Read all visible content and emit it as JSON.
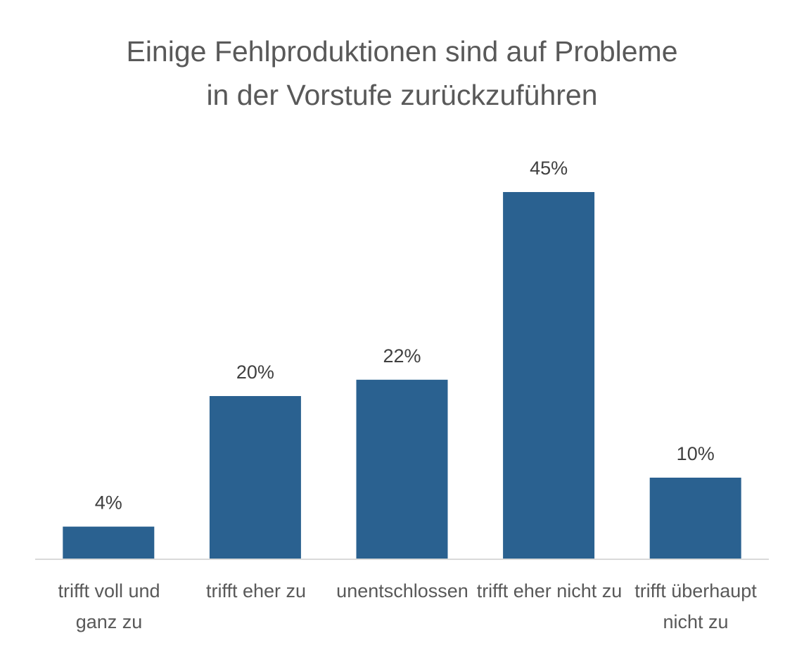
{
  "chart_data": {
    "type": "bar",
    "title_lines": [
      "Einige Fehlproduktionen sind auf Probleme",
      "in der Vorstufe zurückzuführen"
    ],
    "categories": [
      "trifft voll und ganz zu",
      "trifft eher zu",
      "unentschlossen",
      "trifft eher nicht zu",
      "trifft überhaupt nicht zu"
    ],
    "values": [
      4,
      20,
      22,
      45,
      10
    ],
    "data_labels": [
      "4%",
      "20%",
      "22%",
      "45%",
      "10%"
    ],
    "unit": "%",
    "ylim": [
      0,
      50
    ],
    "grid": false,
    "legend": "none",
    "bar_color": "#2a6190",
    "text_color": "#595959",
    "axis_color": "#d9d9d9"
  }
}
